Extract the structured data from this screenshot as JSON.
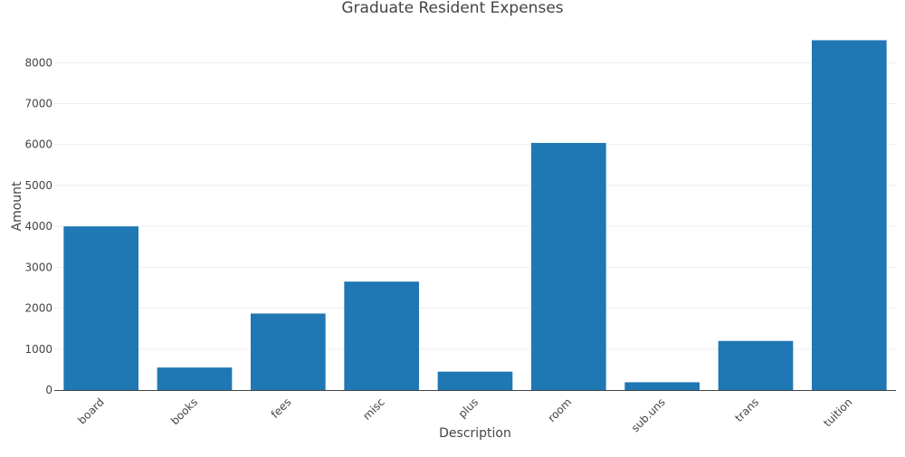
{
  "chart_data": {
    "type": "bar",
    "title": "Graduate Resident Expenses",
    "xlabel": "Description",
    "ylabel": "Amount",
    "categories": [
      "board",
      "books",
      "fees",
      "misc",
      "plus",
      "room",
      "sub.uns",
      "trans",
      "tuition"
    ],
    "values": [
      4000,
      550,
      1870,
      2650,
      450,
      6040,
      190,
      1200,
      8550
    ],
    "ylim": [
      0,
      8560
    ],
    "yticks": [
      "0",
      "1000",
      "2000",
      "3000",
      "4000",
      "5000",
      "6000",
      "7000",
      "8000"
    ],
    "grid": true,
    "bar_color": "#1f77b4"
  }
}
